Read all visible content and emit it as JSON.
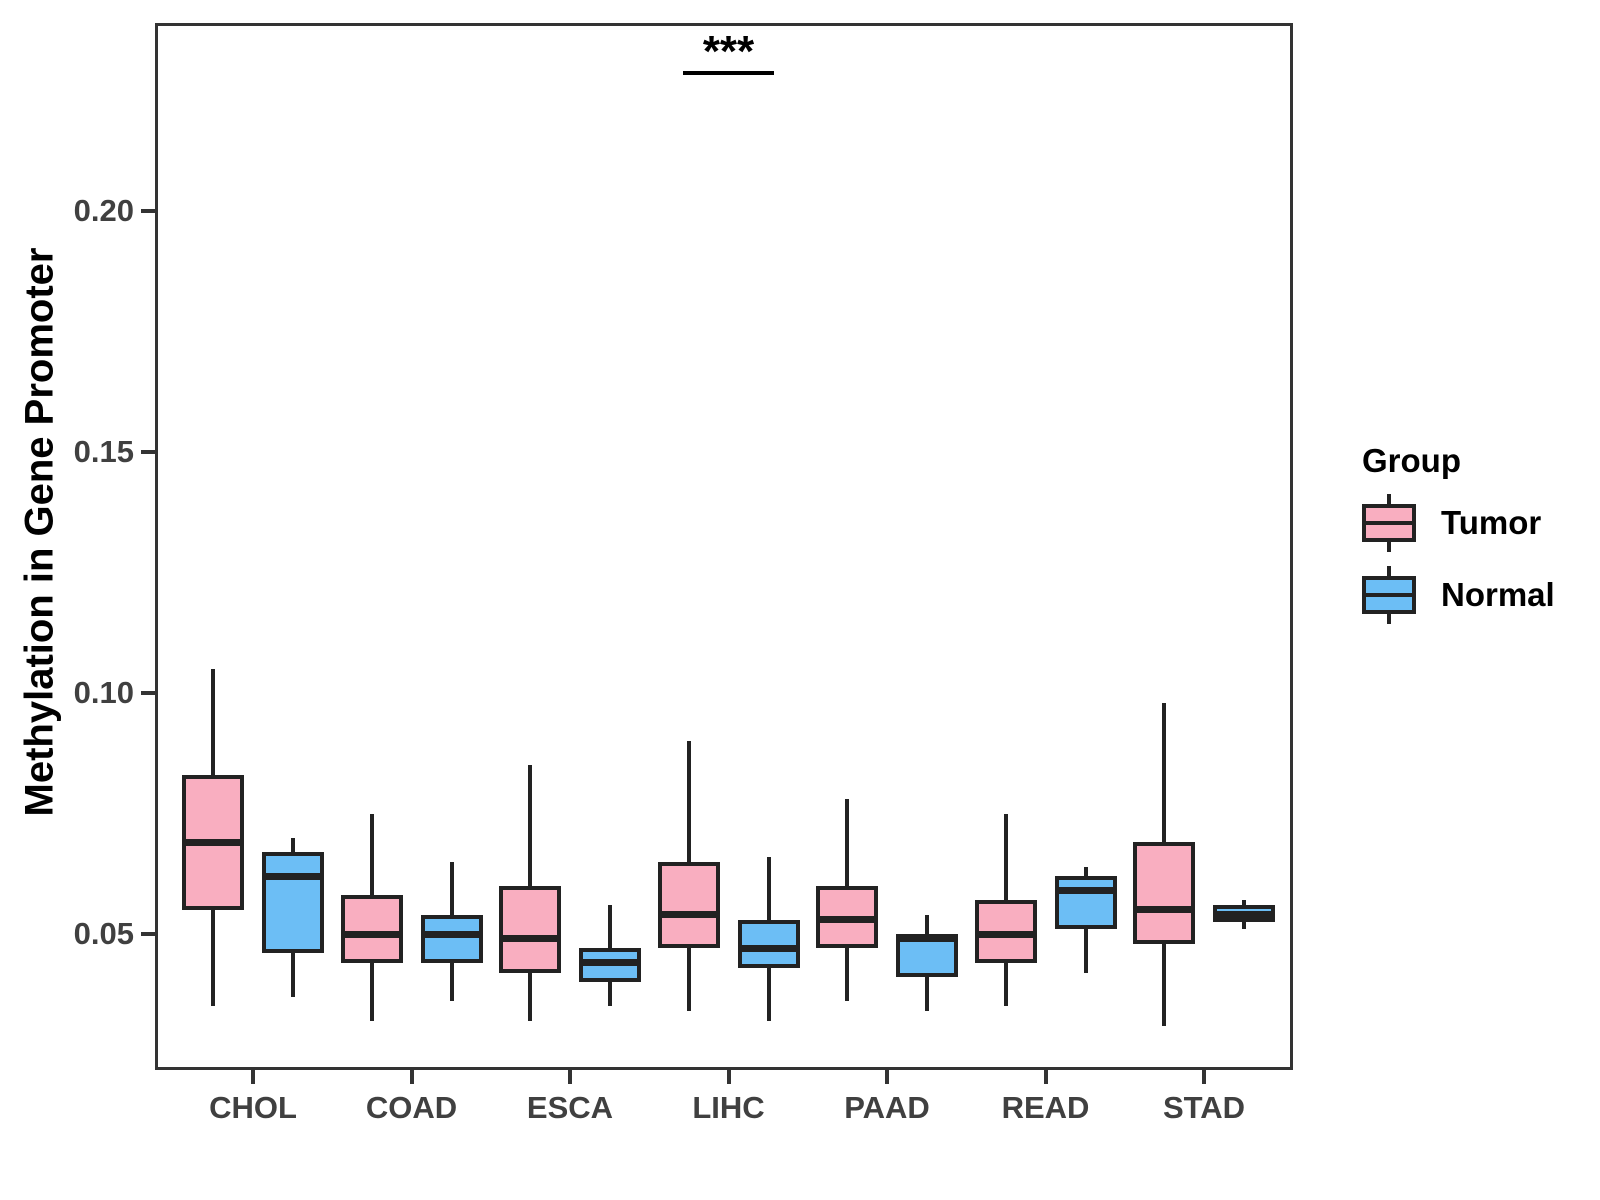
{
  "figure": {
    "y_axis": {
      "label": "Methylation in Gene Promoter",
      "ticks": [
        {
          "label": "0.20",
          "value": 0.2
        },
        {
          "label": "0.15",
          "value": 0.15
        },
        {
          "label": "0.10",
          "value": 0.1
        },
        {
          "label": "0.05",
          "value": 0.05
        }
      ]
    },
    "x_axis": {
      "categories": [
        "CHOL",
        "COAD",
        "ESCA",
        "LIHC",
        "PAAD",
        "READ",
        "STAD"
      ]
    },
    "legend": {
      "title": "Group",
      "entries": [
        {
          "label": "Tumor",
          "fill": "#F9AEC0"
        },
        {
          "label": "Normal",
          "fill": "#6CBEF5"
        }
      ]
    },
    "colors": {
      "tumor_fill": "#F9AEC0",
      "normal_fill": "#6CBEF5",
      "stroke": "#222222",
      "axis_text": "#404040"
    }
  },
  "chart_data": {
    "type": "boxplot",
    "title": "",
    "xlabel": "",
    "ylabel": "Methylation in Gene Promoter",
    "categories": [
      "CHOL",
      "COAD",
      "ESCA",
      "LIHC",
      "PAAD",
      "READ",
      "STAD"
    ],
    "yticks": [
      0.05,
      0.1,
      0.15,
      0.2
    ],
    "ylim": [
      0.022,
      0.239
    ],
    "grid": false,
    "legend_position": "right",
    "series": [
      {
        "name": "Tumor",
        "fill": "#F9AEC0",
        "boxes": [
          {
            "category": "CHOL",
            "whisker_low": 0.035,
            "q1": 0.055,
            "median": 0.069,
            "q3": 0.083,
            "whisker_high": 0.105
          },
          {
            "category": "COAD",
            "whisker_low": 0.032,
            "q1": 0.044,
            "median": 0.05,
            "q3": 0.058,
            "whisker_high": 0.075
          },
          {
            "category": "ESCA",
            "whisker_low": 0.032,
            "q1": 0.042,
            "median": 0.049,
            "q3": 0.06,
            "whisker_high": 0.085
          },
          {
            "category": "LIHC",
            "whisker_low": 0.034,
            "q1": 0.047,
            "median": 0.054,
            "q3": 0.065,
            "whisker_high": 0.09
          },
          {
            "category": "PAAD",
            "whisker_low": 0.036,
            "q1": 0.047,
            "median": 0.053,
            "q3": 0.06,
            "whisker_high": 0.078
          },
          {
            "category": "READ",
            "whisker_low": 0.035,
            "q1": 0.044,
            "median": 0.05,
            "q3": 0.057,
            "whisker_high": 0.075
          },
          {
            "category": "STAD",
            "whisker_low": 0.031,
            "q1": 0.048,
            "median": 0.055,
            "q3": 0.069,
            "whisker_high": 0.098
          }
        ]
      },
      {
        "name": "Normal",
        "fill": "#6CBEF5",
        "boxes": [
          {
            "category": "CHOL",
            "whisker_low": 0.037,
            "q1": 0.046,
            "median": 0.062,
            "q3": 0.067,
            "whisker_high": 0.07
          },
          {
            "category": "COAD",
            "whisker_low": 0.036,
            "q1": 0.044,
            "median": 0.05,
            "q3": 0.054,
            "whisker_high": 0.065
          },
          {
            "category": "ESCA",
            "whisker_low": 0.035,
            "q1": 0.04,
            "median": 0.044,
            "q3": 0.047,
            "whisker_high": 0.056
          },
          {
            "category": "LIHC",
            "whisker_low": 0.032,
            "q1": 0.043,
            "median": 0.047,
            "q3": 0.053,
            "whisker_high": 0.066
          },
          {
            "category": "PAAD",
            "whisker_low": 0.034,
            "q1": 0.041,
            "median": 0.049,
            "q3": 0.05,
            "whisker_high": 0.054
          },
          {
            "category": "READ",
            "whisker_low": 0.042,
            "q1": 0.051,
            "median": 0.059,
            "q3": 0.062,
            "whisker_high": 0.064
          },
          {
            "category": "STAD",
            "whisker_low": 0.051,
            "q1": 0.0525,
            "median": 0.054,
            "q3": 0.056,
            "whisker_high": 0.057
          }
        ]
      }
    ],
    "significance": [
      {
        "category": "LIHC",
        "label": "***"
      }
    ]
  }
}
